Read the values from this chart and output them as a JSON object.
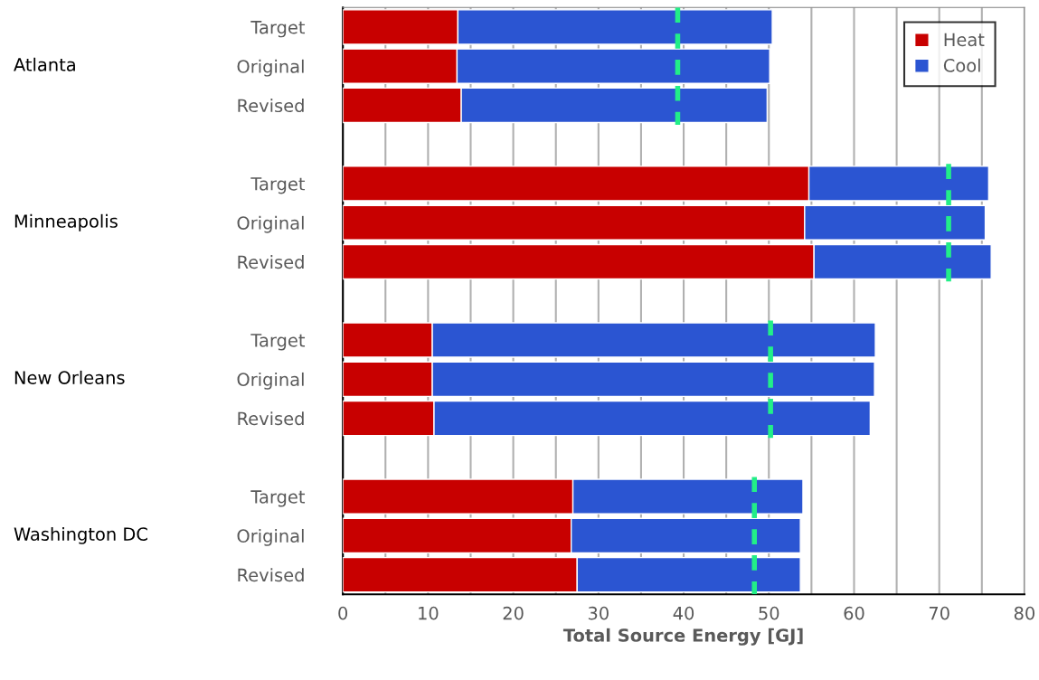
{
  "chart_data": {
    "type": "bar",
    "orientation": "horizontal",
    "stacked": true,
    "categories": [
      "Target",
      "Original",
      "Revised",
      null,
      "Target",
      "Original",
      "Revised",
      null,
      "Target",
      "Original",
      "Revised",
      null,
      "Target",
      "Original",
      "Revised"
    ],
    "series": [
      {
        "name": "Heat",
        "color": "#c80000",
        "values": [
          13.5,
          13.4,
          13.9,
          null,
          54.7,
          54.2,
          55.3,
          null,
          10.5,
          10.5,
          10.7,
          null,
          27.0,
          26.8,
          27.5
        ]
      },
      {
        "name": "Cool",
        "color": "#2b55d2",
        "values": [
          36.9,
          36.7,
          35.9,
          null,
          21.1,
          21.2,
          20.8,
          null,
          52.0,
          51.9,
          51.2,
          null,
          27.0,
          26.9,
          26.2
        ]
      }
    ],
    "xlabel": "Total Source Energy [GJ]",
    "xlim": [
      0,
      80
    ],
    "xticks": [
      0,
      {
        "value": 5,
        "label": null
      },
      10,
      {
        "value": 15,
        "label": null
      },
      20,
      {
        "value": 25,
        "label": null
      },
      30,
      {
        "value": 35,
        "label": null
      },
      40,
      {
        "value": 45,
        "label": null
      },
      50,
      {
        "value": 55,
        "label": null
      },
      60,
      {
        "value": 65,
        "label": null
      },
      70,
      {
        "value": 75,
        "label": null
      },
      80
    ],
    "grid": "x",
    "legend": "top right",
    "ref_lines": [
      {
        "axis": "x",
        "value": 39.3,
        "color": "#22ee88",
        "line_style": "dashed"
      },
      {
        "axis": "x",
        "value": 71.1,
        "color": "#22ee88",
        "line_style": "dashed"
      },
      {
        "axis": "x",
        "value": 50.2,
        "color": "#22ee88",
        "line_style": "dashed"
      },
      {
        "axis": "x",
        "value": 48.3,
        "color": "#22ee88",
        "line_style": "dashed"
      }
    ],
    "annotations": [
      "Atlanta",
      "Minneapolis",
      "New Orleans",
      "Washington DC"
    ]
  }
}
